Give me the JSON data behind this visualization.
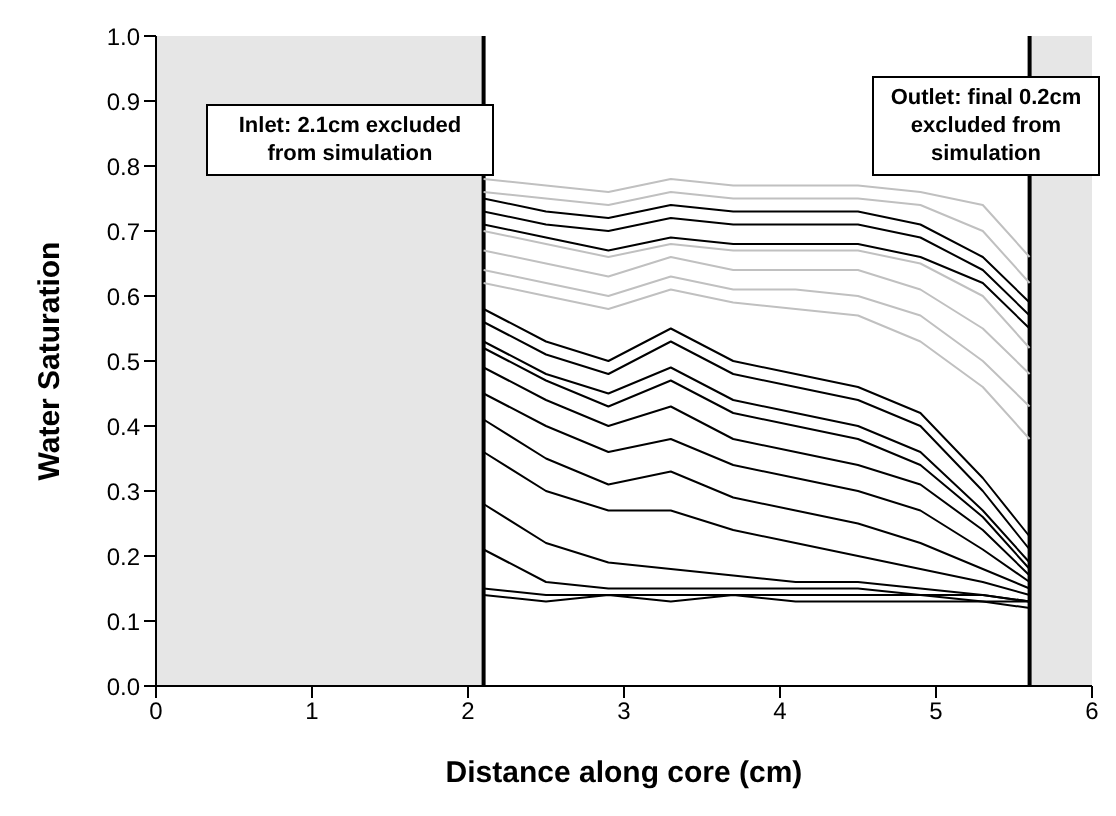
{
  "chart_data": {
    "type": "line",
    "xlabel": "Distance along core (cm)",
    "ylabel": "Water Saturation",
    "x": [
      2.1,
      2.5,
      2.9,
      3.3,
      3.7,
      4.1,
      4.5,
      4.9,
      5.3,
      5.6
    ],
    "xlim": [
      0,
      6
    ],
    "xticks": [
      0,
      1,
      2,
      3,
      4,
      5,
      6
    ],
    "ylim": [
      0,
      1
    ],
    "yticks": [
      {
        "value": 0,
        "label": "0.0"
      },
      {
        "value": 0.1,
        "label": "0.1"
      },
      {
        "value": 0.2,
        "label": "0.2"
      },
      {
        "value": 0.3,
        "label": "0.3"
      },
      {
        "value": 0.4,
        "label": "0.4"
      },
      {
        "value": 0.5,
        "label": "0.5"
      },
      {
        "value": 0.6,
        "label": "0.6"
      },
      {
        "value": 0.7,
        "label": "0.7"
      },
      {
        "value": 0.8,
        "label": "0.8"
      },
      {
        "value": 0.9,
        "label": "0.9"
      },
      {
        "value": 1,
        "label": "1.0"
      }
    ],
    "grid": false,
    "marker": "none",
    "line_style": "solid",
    "bands": [
      {
        "axis": "x",
        "from": 0,
        "to": 2.1,
        "color": "#e6e6e6"
      },
      {
        "axis": "x",
        "from": 5.6,
        "to": 6,
        "color": "#e6e6e6"
      }
    ],
    "ref_lines": [
      {
        "axis": "x",
        "value": 2.1,
        "color": "#000000"
      },
      {
        "axis": "x",
        "value": 5.6,
        "color": "#000000"
      }
    ],
    "annotations": [
      "Inlet: 2.1cm excluded from simulation",
      "Outlet: final 0.2cm excluded from simulation"
    ],
    "series": [
      {
        "color": "#c0c0c0",
        "values": [
          0.78,
          0.77,
          0.76,
          0.78,
          0.77,
          0.77,
          0.77,
          0.76,
          0.74,
          0.66
        ]
      },
      {
        "color": "#c0c0c0",
        "values": [
          0.76,
          0.75,
          0.74,
          0.76,
          0.75,
          0.75,
          0.75,
          0.74,
          0.7,
          0.62
        ]
      },
      {
        "color": "#c0c0c0",
        "values": [
          0.7,
          0.68,
          0.66,
          0.68,
          0.67,
          0.67,
          0.67,
          0.65,
          0.6,
          0.52
        ]
      },
      {
        "color": "#c0c0c0",
        "values": [
          0.67,
          0.65,
          0.63,
          0.66,
          0.64,
          0.64,
          0.64,
          0.61,
          0.55,
          0.48
        ]
      },
      {
        "color": "#c0c0c0",
        "values": [
          0.64,
          0.62,
          0.6,
          0.63,
          0.61,
          0.61,
          0.6,
          0.57,
          0.5,
          0.43
        ]
      },
      {
        "color": "#c0c0c0",
        "values": [
          0.62,
          0.6,
          0.58,
          0.61,
          0.59,
          0.58,
          0.57,
          0.53,
          0.46,
          0.38
        ]
      },
      {
        "color": "#000000",
        "values": [
          0.75,
          0.73,
          0.72,
          0.74,
          0.73,
          0.73,
          0.73,
          0.71,
          0.66,
          0.59
        ]
      },
      {
        "color": "#000000",
        "values": [
          0.73,
          0.71,
          0.7,
          0.72,
          0.71,
          0.71,
          0.71,
          0.69,
          0.64,
          0.57
        ]
      },
      {
        "color": "#000000",
        "values": [
          0.71,
          0.69,
          0.67,
          0.69,
          0.68,
          0.68,
          0.68,
          0.66,
          0.62,
          0.55
        ]
      },
      {
        "color": "#000000",
        "values": [
          0.58,
          0.53,
          0.5,
          0.55,
          0.5,
          0.48,
          0.46,
          0.42,
          0.32,
          0.23
        ]
      },
      {
        "color": "#000000",
        "values": [
          0.56,
          0.51,
          0.48,
          0.53,
          0.48,
          0.46,
          0.44,
          0.4,
          0.3,
          0.21
        ]
      },
      {
        "color": "#000000",
        "values": [
          0.53,
          0.48,
          0.45,
          0.49,
          0.44,
          0.42,
          0.4,
          0.36,
          0.27,
          0.19
        ]
      },
      {
        "color": "#000000",
        "values": [
          0.52,
          0.47,
          0.43,
          0.47,
          0.42,
          0.4,
          0.38,
          0.34,
          0.26,
          0.18
        ]
      },
      {
        "color": "#000000",
        "values": [
          0.49,
          0.44,
          0.4,
          0.43,
          0.38,
          0.36,
          0.34,
          0.31,
          0.24,
          0.17
        ]
      },
      {
        "color": "#000000",
        "values": [
          0.45,
          0.4,
          0.36,
          0.38,
          0.34,
          0.32,
          0.3,
          0.27,
          0.21,
          0.16
        ]
      },
      {
        "color": "#000000",
        "values": [
          0.41,
          0.35,
          0.31,
          0.33,
          0.29,
          0.27,
          0.25,
          0.22,
          0.18,
          0.15
        ]
      },
      {
        "color": "#000000",
        "values": [
          0.36,
          0.3,
          0.27,
          0.27,
          0.24,
          0.22,
          0.2,
          0.18,
          0.16,
          0.14
        ]
      },
      {
        "color": "#000000",
        "values": [
          0.28,
          0.22,
          0.19,
          0.18,
          0.17,
          0.16,
          0.16,
          0.15,
          0.14,
          0.13
        ]
      },
      {
        "color": "#000000",
        "values": [
          0.21,
          0.16,
          0.15,
          0.15,
          0.15,
          0.15,
          0.15,
          0.14,
          0.14,
          0.13
        ]
      },
      {
        "color": "#000000",
        "values": [
          0.15,
          0.14,
          0.14,
          0.14,
          0.14,
          0.14,
          0.14,
          0.14,
          0.13,
          0.13
        ]
      },
      {
        "color": "#000000",
        "values": [
          0.14,
          0.13,
          0.14,
          0.13,
          0.14,
          0.13,
          0.13,
          0.13,
          0.13,
          0.12
        ]
      }
    ]
  }
}
